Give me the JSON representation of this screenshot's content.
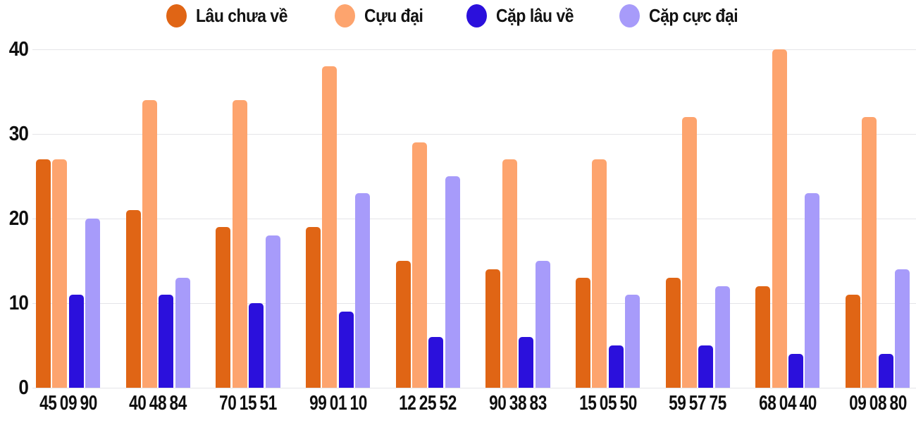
{
  "chart_data": {
    "type": "bar",
    "title": "",
    "categories": [
      "45 09 90",
      "40 48 84",
      "70 15 51",
      "99 01 10",
      "12 25 52",
      "90 38 83",
      "15 05 50",
      "59 57 75",
      "68 04 40",
      "09 08 80"
    ],
    "series": [
      {
        "name": "Lâu chưa về",
        "color": "#e06515",
        "values": [
          27,
          21,
          19,
          19,
          15,
          14,
          13,
          13,
          12,
          11
        ]
      },
      {
        "name": "Cựu đại",
        "color": "#fda46e",
        "values": [
          27,
          34,
          34,
          38,
          29,
          27,
          27,
          32,
          40,
          32
        ]
      },
      {
        "name": "Cặp lâu về",
        "color": "#2b10dc",
        "values": [
          11,
          11,
          10,
          9,
          6,
          6,
          5,
          5,
          4,
          4
        ]
      },
      {
        "name": "Cặp cực đại",
        "color": "#a79bfa",
        "values": [
          20,
          13,
          18,
          23,
          25,
          15,
          11,
          12,
          23,
          14
        ]
      }
    ],
    "xlabel": "",
    "ylabel": "",
    "ylim": [
      0,
      40
    ],
    "yticks": [
      0,
      10,
      20,
      30,
      40
    ],
    "grid": true,
    "legend_position": "top",
    "colors": {
      "background": "#ffffff",
      "gridline": "#e4e4e8",
      "label_text": "#0f0f0f"
    }
  }
}
